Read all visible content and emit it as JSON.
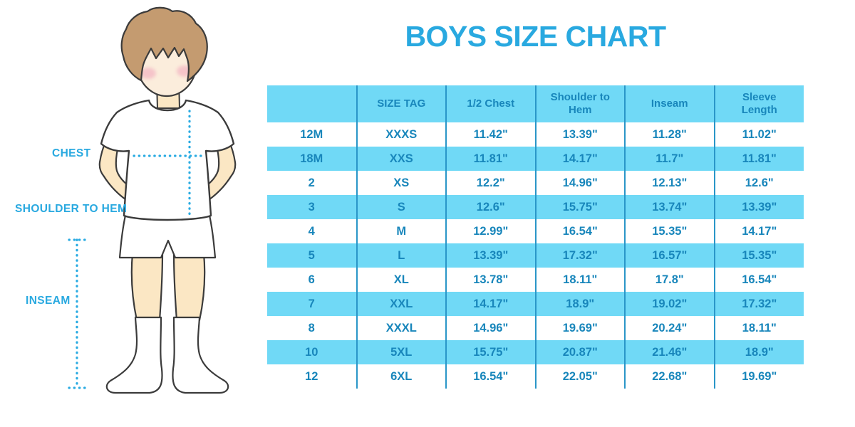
{
  "title": "BOYS SIZE CHART",
  "figure": {
    "description": "boy-with-measurement-lines",
    "labels": {
      "chest": "CHEST",
      "shoulder_to_hem": "SHOULDER TO HEM",
      "inseam": "INSEAM"
    }
  },
  "colors": {
    "accent_cyan": "#29a9e0",
    "table_text_blue": "#1886bb",
    "row_fill_blue": "#70d9f6",
    "column_divider_blue": "#2a96c8",
    "skin": "#fbe7c4",
    "face": "#fbeddc",
    "hair": "#c49b70",
    "blush": "#f2afc0",
    "outline": "#3b3b3b"
  },
  "chart_data": {
    "type": "table",
    "title": "BOYS SIZE CHART",
    "columns": [
      "",
      "SIZE TAG",
      "1/2 Chest",
      "Shoulder to Hem",
      "Inseam",
      "Sleeve Length"
    ],
    "rows": [
      [
        "12M",
        "XXXS",
        "11.42\"",
        "13.39\"",
        "11.28\"",
        "11.02\""
      ],
      [
        "18M",
        "XXS",
        "11.81\"",
        "14.17\"",
        "11.7\"",
        "11.81\""
      ],
      [
        "2",
        "XS",
        "12.2\"",
        "14.96\"",
        "12.13\"",
        "12.6\""
      ],
      [
        "3",
        "S",
        "12.6\"",
        "15.75\"",
        "13.74\"",
        "13.39\""
      ],
      [
        "4",
        "M",
        "12.99\"",
        "16.54\"",
        "15.35\"",
        "14.17\""
      ],
      [
        "5",
        "L",
        "13.39\"",
        "17.32\"",
        "16.57\"",
        "15.35\""
      ],
      [
        "6",
        "XL",
        "13.78\"",
        "18.11\"",
        "17.8\"",
        "16.54\""
      ],
      [
        "7",
        "XXL",
        "14.17\"",
        "18.9\"",
        "19.02\"",
        "17.32\""
      ],
      [
        "8",
        "XXXL",
        "14.96\"",
        "19.69\"",
        "20.24\"",
        "18.11\""
      ],
      [
        "10",
        "5XL",
        "15.75\"",
        "20.87\"",
        "21.46\"",
        "18.9\""
      ],
      [
        "12",
        "6XL",
        "16.54\"",
        "22.05\"",
        "22.68\"",
        "19.69\""
      ]
    ],
    "layout": {
      "header_fill": "blue",
      "row_striping": "white/blue alternating starting white",
      "grid": "vertical dividers only"
    }
  }
}
